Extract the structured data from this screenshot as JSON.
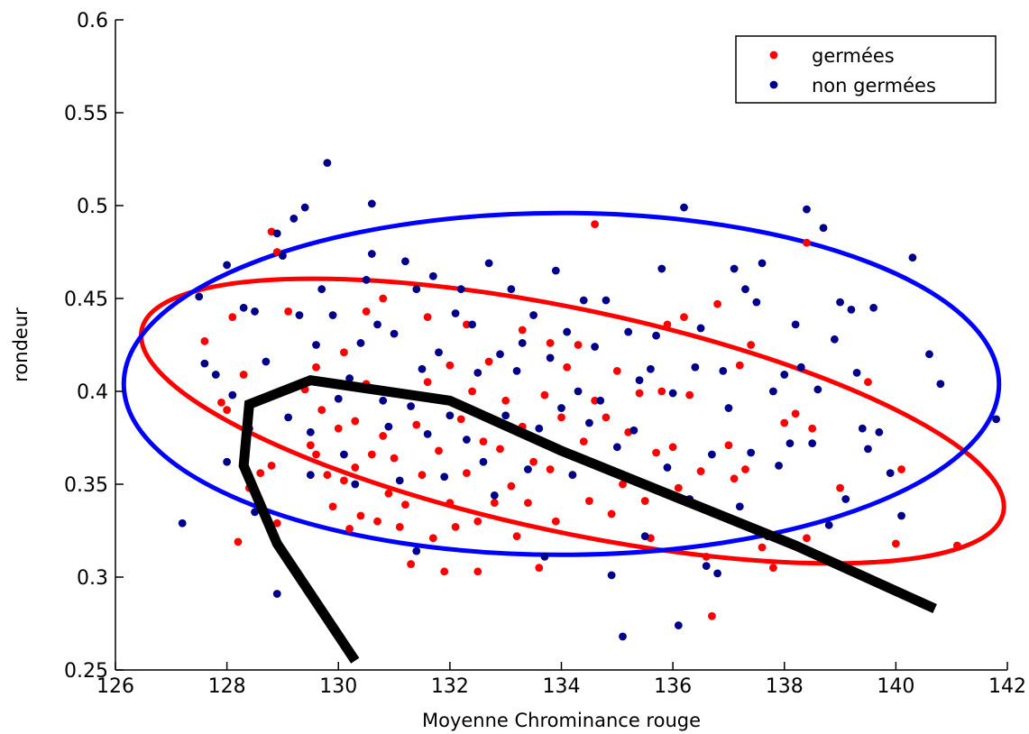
{
  "chart_data": {
    "type": "scatter",
    "xlabel": "Moyenne Chrominance rouge",
    "ylabel": "rondeur",
    "xlim": [
      126,
      142
    ],
    "ylim": [
      0.25,
      0.6
    ],
    "x_ticks": [
      "126",
      "128",
      "130",
      "132",
      "134",
      "136",
      "138",
      "140",
      "142"
    ],
    "y_ticks": [
      "0.25",
      "0.3",
      "0.35",
      "0.4",
      "0.45",
      "0.5",
      "0.55",
      "0.6"
    ],
    "grid": false,
    "legend_position": "top-right",
    "series": [
      {
        "name": "germées",
        "color": "#ff0000",
        "points": [
          [
            127.6,
            0.427
          ],
          [
            127.9,
            0.394
          ],
          [
            128.0,
            0.39
          ],
          [
            128.1,
            0.44
          ],
          [
            128.3,
            0.409
          ],
          [
            128.6,
            0.356
          ],
          [
            128.4,
            0.348
          ],
          [
            128.2,
            0.319
          ],
          [
            128.8,
            0.486
          ],
          [
            128.9,
            0.475
          ],
          [
            128.8,
            0.36
          ],
          [
            128.9,
            0.329
          ],
          [
            129.1,
            0.443
          ],
          [
            129.4,
            0.401
          ],
          [
            129.5,
            0.371
          ],
          [
            129.6,
            0.366
          ],
          [
            129.6,
            0.413
          ],
          [
            129.7,
            0.39
          ],
          [
            129.8,
            0.355
          ],
          [
            129.9,
            0.338
          ],
          [
            130.0,
            0.38
          ],
          [
            130.1,
            0.421
          ],
          [
            130.1,
            0.352
          ],
          [
            130.2,
            0.326
          ],
          [
            130.3,
            0.384
          ],
          [
            130.3,
            0.359
          ],
          [
            130.4,
            0.333
          ],
          [
            130.5,
            0.443
          ],
          [
            130.5,
            0.404
          ],
          [
            130.6,
            0.366
          ],
          [
            130.7,
            0.33
          ],
          [
            130.8,
            0.45
          ],
          [
            130.8,
            0.376
          ],
          [
            130.9,
            0.345
          ],
          [
            131.0,
            0.399
          ],
          [
            131.0,
            0.364
          ],
          [
            131.1,
            0.327
          ],
          [
            131.2,
            0.339
          ],
          [
            131.3,
            0.307
          ],
          [
            131.4,
            0.382
          ],
          [
            131.5,
            0.355
          ],
          [
            131.6,
            0.44
          ],
          [
            131.6,
            0.405
          ],
          [
            131.7,
            0.321
          ],
          [
            131.8,
            0.368
          ],
          [
            131.9,
            0.395
          ],
          [
            131.9,
            0.303
          ],
          [
            132.0,
            0.414
          ],
          [
            132.0,
            0.34
          ],
          [
            132.1,
            0.327
          ],
          [
            132.2,
            0.385
          ],
          [
            132.3,
            0.356
          ],
          [
            132.3,
            0.436
          ],
          [
            132.4,
            0.4
          ],
          [
            132.5,
            0.33
          ],
          [
            132.5,
            0.303
          ],
          [
            132.6,
            0.373
          ],
          [
            132.7,
            0.416
          ],
          [
            132.8,
            0.34
          ],
          [
            132.9,
            0.369
          ],
          [
            133.0,
            0.395
          ],
          [
            133.1,
            0.349
          ],
          [
            133.2,
            0.322
          ],
          [
            133.3,
            0.433
          ],
          [
            133.3,
            0.381
          ],
          [
            133.4,
            0.34
          ],
          [
            133.5,
            0.362
          ],
          [
            133.6,
            0.305
          ],
          [
            133.7,
            0.398
          ],
          [
            133.8,
            0.426
          ],
          [
            133.8,
            0.358
          ],
          [
            133.9,
            0.33
          ],
          [
            134.0,
            0.386
          ],
          [
            134.1,
            0.413
          ],
          [
            134.2,
            0.355
          ],
          [
            134.3,
            0.425
          ],
          [
            134.4,
            0.373
          ],
          [
            134.5,
            0.341
          ],
          [
            134.6,
            0.49
          ],
          [
            134.6,
            0.395
          ],
          [
            134.7,
            0.36
          ],
          [
            134.8,
            0.386
          ],
          [
            134.9,
            0.334
          ],
          [
            135.0,
            0.411
          ],
          [
            135.1,
            0.35
          ],
          [
            135.2,
            0.378
          ],
          [
            135.4,
            0.399
          ],
          [
            135.5,
            0.341
          ],
          [
            135.6,
            0.321
          ],
          [
            135.7,
            0.367
          ],
          [
            135.8,
            0.4
          ],
          [
            135.9,
            0.436
          ],
          [
            136.0,
            0.37
          ],
          [
            136.1,
            0.348
          ],
          [
            136.2,
            0.44
          ],
          [
            136.3,
            0.398
          ],
          [
            136.5,
            0.357
          ],
          [
            136.6,
            0.311
          ],
          [
            136.7,
            0.279
          ],
          [
            136.8,
            0.447
          ],
          [
            137.0,
            0.371
          ],
          [
            137.1,
            0.353
          ],
          [
            137.2,
            0.414
          ],
          [
            137.3,
            0.358
          ],
          [
            137.4,
            0.425
          ],
          [
            137.6,
            0.316
          ],
          [
            137.8,
            0.305
          ],
          [
            138.0,
            0.383
          ],
          [
            138.2,
            0.388
          ],
          [
            138.4,
            0.48
          ],
          [
            138.4,
            0.321
          ],
          [
            138.5,
            0.38
          ],
          [
            139.0,
            0.348
          ],
          [
            139.5,
            0.405
          ],
          [
            140.0,
            0.318
          ],
          [
            140.1,
            0.358
          ],
          [
            141.1,
            0.317
          ]
        ]
      },
      {
        "name": "non germées",
        "color": "#00008b",
        "points": [
          [
            127.2,
            0.329
          ],
          [
            127.5,
            0.451
          ],
          [
            127.6,
            0.415
          ],
          [
            127.8,
            0.409
          ],
          [
            128.0,
            0.468
          ],
          [
            128.0,
            0.362
          ],
          [
            128.1,
            0.398
          ],
          [
            128.3,
            0.445
          ],
          [
            128.4,
            0.38
          ],
          [
            128.5,
            0.443
          ],
          [
            128.5,
            0.335
          ],
          [
            128.7,
            0.416
          ],
          [
            128.9,
            0.485
          ],
          [
            128.9,
            0.291
          ],
          [
            129.0,
            0.473
          ],
          [
            129.1,
            0.386
          ],
          [
            129.2,
            0.493
          ],
          [
            129.3,
            0.441
          ],
          [
            129.4,
            0.499
          ],
          [
            129.5,
            0.378
          ],
          [
            129.5,
            0.355
          ],
          [
            129.6,
            0.425
          ],
          [
            129.7,
            0.455
          ],
          [
            129.8,
            0.523
          ],
          [
            129.9,
            0.441
          ],
          [
            130.0,
            0.396
          ],
          [
            130.1,
            0.366
          ],
          [
            130.2,
            0.407
          ],
          [
            130.3,
            0.35
          ],
          [
            130.4,
            0.426
          ],
          [
            130.5,
            0.46
          ],
          [
            130.6,
            0.474
          ],
          [
            130.6,
            0.501
          ],
          [
            130.7,
            0.436
          ],
          [
            130.8,
            0.395
          ],
          [
            130.9,
            0.381
          ],
          [
            131.0,
            0.431
          ],
          [
            131.1,
            0.352
          ],
          [
            131.2,
            0.47
          ],
          [
            131.3,
            0.392
          ],
          [
            131.4,
            0.455
          ],
          [
            131.4,
            0.314
          ],
          [
            131.5,
            0.412
          ],
          [
            131.6,
            0.377
          ],
          [
            131.7,
            0.462
          ],
          [
            131.8,
            0.421
          ],
          [
            131.9,
            0.354
          ],
          [
            132.0,
            0.387
          ],
          [
            132.1,
            0.442
          ],
          [
            132.2,
            0.455
          ],
          [
            132.3,
            0.374
          ],
          [
            132.4,
            0.436
          ],
          [
            132.5,
            0.41
          ],
          [
            132.6,
            0.362
          ],
          [
            132.7,
            0.469
          ],
          [
            132.8,
            0.344
          ],
          [
            132.9,
            0.42
          ],
          [
            133.0,
            0.387
          ],
          [
            133.1,
            0.455
          ],
          [
            133.2,
            0.411
          ],
          [
            133.3,
            0.426
          ],
          [
            133.4,
            0.358
          ],
          [
            133.5,
            0.441
          ],
          [
            133.6,
            0.38
          ],
          [
            133.7,
            0.311
          ],
          [
            133.8,
            0.418
          ],
          [
            133.9,
            0.465
          ],
          [
            134.0,
            0.391
          ],
          [
            134.1,
            0.432
          ],
          [
            134.2,
            0.355
          ],
          [
            134.3,
            0.4
          ],
          [
            134.4,
            0.449
          ],
          [
            134.5,
            0.383
          ],
          [
            134.6,
            0.424
          ],
          [
            134.7,
            0.395
          ],
          [
            134.8,
            0.449
          ],
          [
            134.9,
            0.301
          ],
          [
            135.0,
            0.37
          ],
          [
            135.1,
            0.268
          ],
          [
            135.2,
            0.432
          ],
          [
            135.3,
            0.379
          ],
          [
            135.4,
            0.406
          ],
          [
            135.5,
            0.322
          ],
          [
            135.6,
            0.412
          ],
          [
            135.7,
            0.43
          ],
          [
            135.8,
            0.466
          ],
          [
            135.9,
            0.359
          ],
          [
            136.0,
            0.399
          ],
          [
            136.1,
            0.274
          ],
          [
            136.2,
            0.499
          ],
          [
            136.3,
            0.342
          ],
          [
            136.4,
            0.413
          ],
          [
            136.5,
            0.434
          ],
          [
            136.6,
            0.306
          ],
          [
            136.7,
            0.366
          ],
          [
            136.8,
            0.302
          ],
          [
            136.9,
            0.411
          ],
          [
            137.0,
            0.391
          ],
          [
            137.1,
            0.466
          ],
          [
            137.2,
            0.338
          ],
          [
            137.3,
            0.455
          ],
          [
            137.4,
            0.367
          ],
          [
            137.5,
            0.448
          ],
          [
            137.6,
            0.469
          ],
          [
            137.7,
            0.322
          ],
          [
            137.8,
            0.4
          ],
          [
            137.9,
            0.36
          ],
          [
            138.0,
            0.409
          ],
          [
            138.1,
            0.372
          ],
          [
            138.2,
            0.436
          ],
          [
            138.3,
            0.413
          ],
          [
            138.4,
            0.498
          ],
          [
            138.5,
            0.372
          ],
          [
            138.6,
            0.401
          ],
          [
            138.7,
            0.488
          ],
          [
            138.8,
            0.328
          ],
          [
            138.9,
            0.428
          ],
          [
            139.0,
            0.448
          ],
          [
            139.1,
            0.342
          ],
          [
            139.2,
            0.444
          ],
          [
            139.3,
            0.41
          ],
          [
            139.4,
            0.38
          ],
          [
            139.5,
            0.369
          ],
          [
            139.6,
            0.445
          ],
          [
            139.7,
            0.378
          ],
          [
            139.9,
            0.356
          ],
          [
            140.1,
            0.333
          ],
          [
            140.3,
            0.472
          ],
          [
            140.6,
            0.42
          ],
          [
            140.8,
            0.404
          ],
          [
            141.8,
            0.385
          ]
        ]
      }
    ],
    "ellipses": [
      {
        "color": "#ff0000",
        "center": [
          134.2,
          0.384
        ],
        "rx": 7.9,
        "ry": 0.06,
        "angle_deg": 12
      },
      {
        "color": "#0000ff",
        "center": [
          134.0,
          0.404
        ],
        "rx": 7.85,
        "ry": 0.092,
        "angle_deg": 0
      }
    ],
    "boundary_lines": [
      {
        "color": "#000000",
        "points": [
          [
            130.3,
            0.255
          ],
          [
            128.9,
            0.318
          ],
          [
            128.3,
            0.36
          ],
          [
            128.4,
            0.393
          ],
          [
            129.5,
            0.406
          ],
          [
            132.0,
            0.395
          ],
          [
            134.0,
            0.368
          ],
          [
            136.8,
            0.334
          ],
          [
            138.2,
            0.317
          ],
          [
            140.7,
            0.283
          ]
        ]
      }
    ]
  }
}
